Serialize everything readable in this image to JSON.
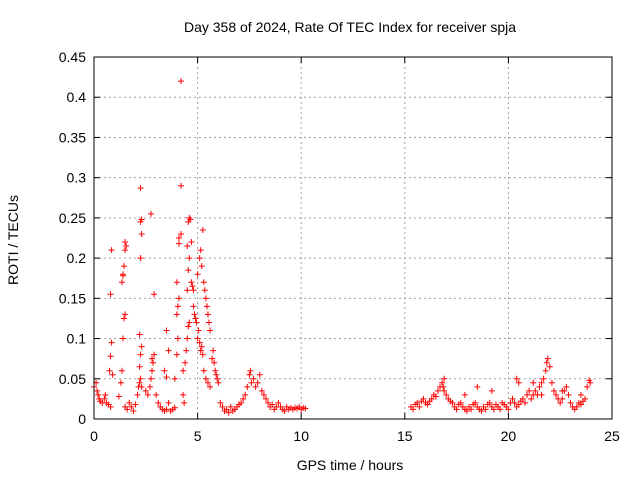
{
  "chart_data": {
    "type": "scatter",
    "title": "Day 358 of 2024, Rate Of TEC Index for receiver spja",
    "xlabel": "GPS time / hours",
    "ylabel": "ROTI / TECUs",
    "xlim": [
      0,
      25
    ],
    "ylim": [
      0,
      0.45
    ],
    "xticks": [
      "0",
      "5",
      "10",
      "15",
      "20",
      "25"
    ],
    "yticks": [
      "0",
      "0.05",
      "0.1",
      "0.15",
      "0.2",
      "0.25",
      "0.3",
      "0.35",
      "0.4",
      "0.45"
    ],
    "grid": true,
    "marker": "+",
    "color": "#ff0000",
    "points": [
      [
        0.0,
        0.04
      ],
      [
        0.1,
        0.045
      ],
      [
        0.15,
        0.035
      ],
      [
        0.2,
        0.03
      ],
      [
        0.25,
        0.025
      ],
      [
        0.3,
        0.022
      ],
      [
        0.4,
        0.02
      ],
      [
        0.5,
        0.025
      ],
      [
        0.55,
        0.03
      ],
      [
        0.6,
        0.02
      ],
      [
        0.7,
        0.018
      ],
      [
        0.8,
        0.015
      ],
      [
        0.75,
        0.06
      ],
      [
        0.8,
        0.078
      ],
      [
        0.85,
        0.095
      ],
      [
        0.8,
        0.155
      ],
      [
        0.85,
        0.21
      ],
      [
        0.9,
        0.055
      ],
      [
        1.2,
        0.028
      ],
      [
        1.3,
        0.045
      ],
      [
        1.35,
        0.06
      ],
      [
        1.4,
        0.1
      ],
      [
        1.45,
        0.125
      ],
      [
        1.5,
        0.13
      ],
      [
        1.35,
        0.17
      ],
      [
        1.4,
        0.18
      ],
      [
        1.45,
        0.19
      ],
      [
        1.5,
        0.21
      ],
      [
        1.55,
        0.215
      ],
      [
        1.5,
        0.22
      ],
      [
        1.4,
        0.178
      ],
      [
        1.5,
        0.015
      ],
      [
        1.6,
        0.012
      ],
      [
        1.7,
        0.02
      ],
      [
        1.8,
        0.015
      ],
      [
        1.9,
        0.01
      ],
      [
        2.0,
        0.018
      ],
      [
        2.1,
        0.03
      ],
      [
        2.15,
        0.04
      ],
      [
        2.2,
        0.045
      ],
      [
        2.25,
        0.05
      ],
      [
        2.3,
        0.04
      ],
      [
        2.2,
        0.065
      ],
      [
        2.25,
        0.08
      ],
      [
        2.3,
        0.09
      ],
      [
        2.2,
        0.105
      ],
      [
        2.25,
        0.2
      ],
      [
        2.3,
        0.23
      ],
      [
        2.25,
        0.245
      ],
      [
        2.3,
        0.248
      ],
      [
        2.25,
        0.287
      ],
      [
        2.5,
        0.035
      ],
      [
        2.6,
        0.03
      ],
      [
        2.7,
        0.04
      ],
      [
        2.75,
        0.05
      ],
      [
        2.8,
        0.06
      ],
      [
        2.85,
        0.07
      ],
      [
        2.9,
        0.08
      ],
      [
        2.8,
        0.075
      ],
      [
        2.75,
        0.255
      ],
      [
        2.9,
        0.155
      ],
      [
        3.0,
        0.03
      ],
      [
        3.1,
        0.02
      ],
      [
        3.2,
        0.015
      ],
      [
        3.3,
        0.012
      ],
      [
        3.4,
        0.01
      ],
      [
        3.5,
        0.012
      ],
      [
        3.6,
        0.02
      ],
      [
        3.7,
        0.01
      ],
      [
        3.8,
        0.012
      ],
      [
        3.9,
        0.014
      ],
      [
        3.4,
        0.06
      ],
      [
        3.5,
        0.11
      ],
      [
        3.6,
        0.085
      ],
      [
        3.5,
        0.052
      ],
      [
        3.9,
        0.05
      ],
      [
        4.0,
        0.08
      ],
      [
        4.05,
        0.1
      ],
      [
        4.0,
        0.13
      ],
      [
        4.05,
        0.14
      ],
      [
        4.1,
        0.15
      ],
      [
        4.0,
        0.17
      ],
      [
        4.1,
        0.225
      ],
      [
        4.2,
        0.23
      ],
      [
        4.1,
        0.218
      ],
      [
        4.2,
        0.29
      ],
      [
        4.2,
        0.42
      ],
      [
        4.3,
        0.03
      ],
      [
        4.35,
        0.02
      ],
      [
        4.3,
        0.06
      ],
      [
        4.4,
        0.07
      ],
      [
        4.45,
        0.085
      ],
      [
        4.5,
        0.1
      ],
      [
        4.55,
        0.115
      ],
      [
        4.6,
        0.12
      ],
      [
        4.5,
        0.16
      ],
      [
        4.55,
        0.185
      ],
      [
        4.6,
        0.2
      ],
      [
        4.5,
        0.215
      ],
      [
        4.55,
        0.245
      ],
      [
        4.6,
        0.25
      ],
      [
        4.65,
        0.248
      ],
      [
        4.7,
        0.22
      ],
      [
        4.7,
        0.17
      ],
      [
        4.75,
        0.165
      ],
      [
        4.8,
        0.16
      ],
      [
        4.8,
        0.14
      ],
      [
        4.85,
        0.13
      ],
      [
        4.9,
        0.125
      ],
      [
        4.95,
        0.12
      ],
      [
        5.0,
        0.1
      ],
      [
        5.05,
        0.11
      ],
      [
        5.1,
        0.095
      ],
      [
        5.15,
        0.085
      ],
      [
        5.2,
        0.09
      ],
      [
        5.25,
        0.08
      ],
      [
        5.0,
        0.18
      ],
      [
        5.1,
        0.2
      ],
      [
        5.15,
        0.21
      ],
      [
        5.2,
        0.19
      ],
      [
        5.25,
        0.235
      ],
      [
        5.3,
        0.17
      ],
      [
        5.35,
        0.16
      ],
      [
        5.4,
        0.15
      ],
      [
        5.45,
        0.14
      ],
      [
        5.5,
        0.13
      ],
      [
        5.55,
        0.12
      ],
      [
        5.6,
        0.11
      ],
      [
        5.3,
        0.06
      ],
      [
        5.4,
        0.05
      ],
      [
        5.5,
        0.045
      ],
      [
        5.6,
        0.04
      ],
      [
        5.7,
        0.075
      ],
      [
        5.75,
        0.085
      ],
      [
        5.8,
        0.07
      ],
      [
        5.85,
        0.06
      ],
      [
        5.9,
        0.055
      ],
      [
        5.95,
        0.05
      ],
      [
        6.0,
        0.045
      ],
      [
        6.1,
        0.02
      ],
      [
        6.2,
        0.015
      ],
      [
        6.3,
        0.01
      ],
      [
        6.4,
        0.012
      ],
      [
        6.5,
        0.008
      ],
      [
        6.6,
        0.015
      ],
      [
        6.7,
        0.01
      ],
      [
        6.8,
        0.012
      ],
      [
        6.9,
        0.015
      ],
      [
        7.0,
        0.018
      ],
      [
        7.1,
        0.02
      ],
      [
        7.2,
        0.025
      ],
      [
        7.3,
        0.03
      ],
      [
        7.4,
        0.04
      ],
      [
        7.5,
        0.055
      ],
      [
        7.55,
        0.06
      ],
      [
        7.6,
        0.045
      ],
      [
        7.7,
        0.05
      ],
      [
        7.8,
        0.04
      ],
      [
        7.9,
        0.045
      ],
      [
        8.0,
        0.055
      ],
      [
        8.1,
        0.035
      ],
      [
        8.2,
        0.03
      ],
      [
        8.3,
        0.025
      ],
      [
        8.4,
        0.02
      ],
      [
        8.5,
        0.015
      ],
      [
        8.6,
        0.018
      ],
      [
        8.7,
        0.012
      ],
      [
        8.8,
        0.015
      ],
      [
        8.9,
        0.02
      ],
      [
        9.0,
        0.015
      ],
      [
        9.1,
        0.012
      ],
      [
        9.2,
        0.01
      ],
      [
        9.3,
        0.015
      ],
      [
        9.4,
        0.012
      ],
      [
        9.5,
        0.014
      ],
      [
        9.6,
        0.012
      ],
      [
        9.7,
        0.014
      ],
      [
        9.8,
        0.013
      ],
      [
        9.9,
        0.015
      ],
      [
        10.0,
        0.012
      ],
      [
        10.1,
        0.014
      ],
      [
        10.2,
        0.013
      ],
      [
        15.3,
        0.015
      ],
      [
        15.4,
        0.012
      ],
      [
        15.5,
        0.018
      ],
      [
        15.6,
        0.02
      ],
      [
        15.7,
        0.015
      ],
      [
        15.8,
        0.022
      ],
      [
        15.9,
        0.025
      ],
      [
        16.0,
        0.02
      ],
      [
        16.1,
        0.018
      ],
      [
        16.2,
        0.022
      ],
      [
        16.3,
        0.025
      ],
      [
        16.4,
        0.03
      ],
      [
        16.5,
        0.028
      ],
      [
        16.6,
        0.035
      ],
      [
        16.7,
        0.04
      ],
      [
        16.8,
        0.045
      ],
      [
        16.85,
        0.04
      ],
      [
        16.9,
        0.035
      ],
      [
        17.0,
        0.03
      ],
      [
        17.1,
        0.025
      ],
      [
        17.2,
        0.022
      ],
      [
        17.3,
        0.02
      ],
      [
        17.4,
        0.015
      ],
      [
        17.5,
        0.012
      ],
      [
        17.6,
        0.018
      ],
      [
        17.7,
        0.02
      ],
      [
        17.8,
        0.015
      ],
      [
        17.9,
        0.012
      ],
      [
        18.0,
        0.01
      ],
      [
        18.1,
        0.015
      ],
      [
        18.2,
        0.012
      ],
      [
        18.3,
        0.018
      ],
      [
        18.4,
        0.02
      ],
      [
        18.5,
        0.015
      ],
      [
        18.6,
        0.012
      ],
      [
        18.7,
        0.01
      ],
      [
        18.8,
        0.015
      ],
      [
        18.9,
        0.012
      ],
      [
        19.0,
        0.018
      ],
      [
        19.1,
        0.02
      ],
      [
        19.2,
        0.015
      ],
      [
        19.3,
        0.012
      ],
      [
        19.4,
        0.018
      ],
      [
        19.5,
        0.015
      ],
      [
        19.6,
        0.012
      ],
      [
        19.7,
        0.02
      ],
      [
        19.8,
        0.018
      ],
      [
        19.9,
        0.015
      ],
      [
        20.0,
        0.012
      ],
      [
        20.1,
        0.02
      ],
      [
        20.2,
        0.025
      ],
      [
        20.3,
        0.02
      ],
      [
        20.4,
        0.015
      ],
      [
        20.5,
        0.018
      ],
      [
        20.6,
        0.022
      ],
      [
        20.7,
        0.025
      ],
      [
        20.8,
        0.02
      ],
      [
        20.9,
        0.03
      ],
      [
        21.0,
        0.035
      ],
      [
        21.1,
        0.025
      ],
      [
        21.2,
        0.03
      ],
      [
        21.3,
        0.035
      ],
      [
        21.4,
        0.03
      ],
      [
        21.5,
        0.04
      ],
      [
        21.6,
        0.045
      ],
      [
        21.7,
        0.05
      ],
      [
        21.8,
        0.06
      ],
      [
        21.85,
        0.07
      ],
      [
        21.9,
        0.075
      ],
      [
        22.0,
        0.065
      ],
      [
        22.1,
        0.045
      ],
      [
        22.2,
        0.035
      ],
      [
        22.3,
        0.03
      ],
      [
        22.4,
        0.025
      ],
      [
        22.5,
        0.02
      ],
      [
        22.6,
        0.025
      ],
      [
        22.7,
        0.035
      ],
      [
        22.8,
        0.04
      ],
      [
        22.9,
        0.03
      ],
      [
        23.0,
        0.02
      ],
      [
        23.1,
        0.015
      ],
      [
        23.2,
        0.012
      ],
      [
        23.3,
        0.015
      ],
      [
        23.4,
        0.02
      ],
      [
        23.5,
        0.018
      ],
      [
        23.6,
        0.022
      ],
      [
        23.7,
        0.025
      ],
      [
        23.8,
        0.04
      ],
      [
        23.9,
        0.048
      ],
      [
        23.95,
        0.045
      ],
      [
        18.5,
        0.04
      ],
      [
        19.2,
        0.035
      ],
      [
        20.4,
        0.05
      ],
      [
        20.5,
        0.045
      ],
      [
        21.2,
        0.045
      ],
      [
        21.6,
        0.03
      ],
      [
        22.6,
        0.035
      ],
      [
        23.5,
        0.03
      ],
      [
        17.9,
        0.03
      ],
      [
        16.9,
        0.05
      ]
    ]
  }
}
